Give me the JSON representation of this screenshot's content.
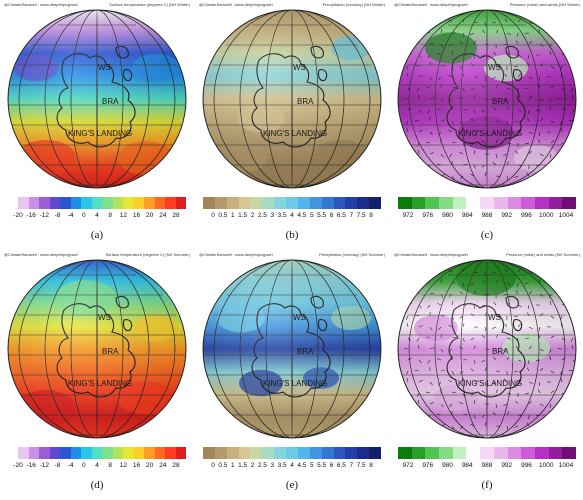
{
  "credit": "@ClimateSamwell : www.deepthiprojpwel",
  "places": [
    "WS",
    "BRA",
    "KING'S LANDING"
  ],
  "panels": [
    {
      "id": "a",
      "caption": "(a)",
      "title": "Surface temperature (degrees C) (NH Winter)",
      "palette": [
        "#ffffff",
        "#e7c6f2",
        "#c790e8",
        "#9c5dd9",
        "#5f49d0",
        "#2a55d6",
        "#1e8ee8",
        "#27c6ea",
        "#4fe0c6",
        "#7ee08c",
        "#b3e35a",
        "#e6e634",
        "#ffcc2a",
        "#ff9c22",
        "#ff6a1e",
        "#ff3c1e",
        "#e01e1e"
      ],
      "ticks": [
        "-20",
        "-16",
        "-12",
        "-8",
        "-4",
        "0",
        "4",
        "8",
        "12",
        "16",
        "20",
        "24",
        "28"
      ]
    },
    {
      "id": "b",
      "caption": "(b)",
      "title": "Precipitation (mm/day) (NH Winter)",
      "palette": [
        "#a2865a",
        "#b49a6a",
        "#c8b07a",
        "#d8c690",
        "#c8d6a2",
        "#a8dcc0",
        "#86d4dc",
        "#6ccbe8",
        "#52b6ec",
        "#3f96e2",
        "#3576d4",
        "#2b58c0",
        "#2340a8",
        "#1c2c8a",
        "#15206c"
      ],
      "ticks": [
        "0",
        "0.5",
        "1",
        "1.5",
        "2",
        "2.5",
        "3",
        "3.5",
        "4",
        "4.5",
        "5",
        "5.5",
        "6",
        "6.5",
        "7",
        "7.5",
        "8"
      ]
    },
    {
      "id": "c",
      "caption": "(c)",
      "title": "Pressure (mbar) and winds (NH Winter)",
      "palette": [
        "#0c7a0c",
        "#28a028",
        "#52c452",
        "#86dc86",
        "#bff0bf",
        "#ffffff",
        "#f6d6f6",
        "#eab6ee",
        "#dc8ae4",
        "#cc5cd8",
        "#b630c6",
        "#961c9e",
        "#6e0f72"
      ],
      "ticks": [
        "972",
        "976",
        "980",
        "984",
        "988",
        "992",
        "996",
        "1000",
        "1004"
      ]
    },
    {
      "id": "d",
      "caption": "(d)",
      "title": "Surface temperature (degrees C) (NH Summer)",
      "palette": [
        "#ffffff",
        "#e7c6f2",
        "#c790e8",
        "#9c5dd9",
        "#5f49d0",
        "#2a55d6",
        "#1e8ee8",
        "#27c6ea",
        "#4fe0c6",
        "#7ee08c",
        "#b3e35a",
        "#e6e634",
        "#ffcc2a",
        "#ff9c22",
        "#ff6a1e",
        "#ff3c1e",
        "#e01e1e"
      ],
      "ticks": [
        "-20",
        "-16",
        "-12",
        "-8",
        "-4",
        "0",
        "4",
        "8",
        "12",
        "16",
        "20",
        "24",
        "28"
      ]
    },
    {
      "id": "e",
      "caption": "(e)",
      "title": "Precipitation (mm/day) (NH Summer)",
      "palette": [
        "#a2865a",
        "#b49a6a",
        "#c8b07a",
        "#d8c690",
        "#c8d6a2",
        "#a8dcc0",
        "#86d4dc",
        "#6ccbe8",
        "#52b6ec",
        "#3f96e2",
        "#3576d4",
        "#2b58c0",
        "#2340a8",
        "#1c2c8a",
        "#15206c"
      ],
      "ticks": [
        "0",
        "0.5",
        "1",
        "1.5",
        "2",
        "2.5",
        "3",
        "3.5",
        "4",
        "4.5",
        "5",
        "5.5",
        "6",
        "6.5",
        "7",
        "7.5",
        "8"
      ]
    },
    {
      "id": "f",
      "caption": "(f)",
      "title": "Pressure (mbar) and winds (NH Summer)",
      "palette": [
        "#0c7a0c",
        "#28a028",
        "#52c452",
        "#86dc86",
        "#bff0bf",
        "#ffffff",
        "#f6d6f6",
        "#eab6ee",
        "#dc8ae4",
        "#cc5cd8",
        "#b630c6",
        "#961c9e",
        "#6e0f72"
      ],
      "ticks": [
        "972",
        "976",
        "980",
        "984",
        "988",
        "992",
        "996",
        "1000",
        "1004"
      ]
    }
  ]
}
